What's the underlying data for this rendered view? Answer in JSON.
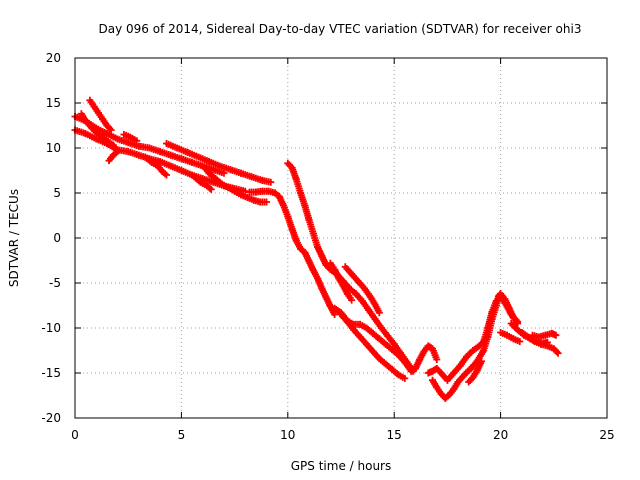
{
  "chart_data": {
    "type": "scatter",
    "title": "Day 096 of 2014, Sidereal Day-to-day VTEC variation (SDTVAR) for receiver ohi3",
    "xlabel": "GPS time / hours",
    "ylabel": "SDTVAR / TECUs",
    "xlim": [
      0,
      25
    ],
    "ylim": [
      -20,
      20
    ],
    "xticks": [
      0,
      5,
      10,
      15,
      20,
      25
    ],
    "yticks": [
      -20,
      -15,
      -10,
      -5,
      0,
      5,
      10,
      15,
      20
    ],
    "grid": true,
    "marker": "+",
    "series_color": "#ff0000",
    "tracks": [
      [
        [
          0.0,
          13.5
        ],
        [
          0.5,
          13.0
        ],
        [
          1.0,
          12.2
        ],
        [
          1.5,
          11.6
        ],
        [
          2.0,
          11.0
        ],
        [
          2.5,
          10.6
        ],
        [
          3.0,
          10.2
        ],
        [
          3.5,
          10.0
        ],
        [
          4.0,
          9.6
        ],
        [
          4.5,
          9.2
        ],
        [
          5.0,
          8.8
        ],
        [
          5.5,
          8.4
        ],
        [
          6.0,
          8.0
        ],
        [
          6.5,
          7.6
        ],
        [
          7.0,
          7.2
        ]
      ],
      [
        [
          0.0,
          12.0
        ],
        [
          0.5,
          11.6
        ],
        [
          1.0,
          11.0
        ],
        [
          1.5,
          10.5
        ],
        [
          2.0,
          9.8
        ],
        [
          2.5,
          9.6
        ],
        [
          3.0,
          9.2
        ],
        [
          3.5,
          8.8
        ],
        [
          4.0,
          8.5
        ],
        [
          4.5,
          8.0
        ],
        [
          5.0,
          7.5
        ],
        [
          5.5,
          7.0
        ],
        [
          6.0,
          6.6
        ],
        [
          6.5,
          6.2
        ],
        [
          7.0,
          5.8
        ],
        [
          7.5,
          5.5
        ],
        [
          8.0,
          5.2
        ]
      ],
      [
        [
          0.7,
          15.3
        ],
        [
          0.9,
          14.6
        ],
        [
          1.1,
          13.9
        ],
        [
          1.3,
          13.2
        ],
        [
          1.5,
          12.5
        ],
        [
          1.7,
          12.0
        ]
      ],
      [
        [
          0.3,
          13.8
        ],
        [
          0.5,
          13.0
        ],
        [
          0.8,
          12.2
        ],
        [
          1.1,
          11.5
        ],
        [
          1.4,
          11.0
        ],
        [
          1.8,
          10.3
        ],
        [
          2.0,
          9.6
        ],
        [
          1.8,
          9.2
        ],
        [
          1.6,
          8.6
        ]
      ],
      [
        [
          4.3,
          10.5
        ],
        [
          4.8,
          10.0
        ],
        [
          5.3,
          9.5
        ],
        [
          5.8,
          9.0
        ],
        [
          6.3,
          8.5
        ],
        [
          6.8,
          8.0
        ],
        [
          7.3,
          7.6
        ],
        [
          7.8,
          7.2
        ],
        [
          8.3,
          6.8
        ],
        [
          8.8,
          6.4
        ],
        [
          9.2,
          6.2
        ]
      ],
      [
        [
          2.3,
          11.5
        ],
        [
          2.6,
          11.2
        ],
        [
          2.9,
          10.8
        ]
      ],
      [
        [
          3.3,
          9.0
        ],
        [
          3.6,
          8.4
        ],
        [
          3.9,
          8.0
        ],
        [
          4.1,
          7.4
        ],
        [
          4.3,
          7.0
        ]
      ],
      [
        [
          6.1,
          7.8
        ],
        [
          6.3,
          7.2
        ],
        [
          6.6,
          6.6
        ],
        [
          6.9,
          6.0
        ],
        [
          7.2,
          5.6
        ],
        [
          7.5,
          5.2
        ],
        [
          7.8,
          4.8
        ]
      ],
      [
        [
          5.6,
          6.8
        ],
        [
          5.9,
          6.2
        ],
        [
          6.2,
          5.8
        ],
        [
          6.4,
          5.4
        ]
      ],
      [
        [
          7.8,
          4.8
        ],
        [
          8.1,
          4.5
        ],
        [
          8.4,
          4.2
        ],
        [
          8.7,
          4.0
        ],
        [
          9.0,
          4.0
        ]
      ],
      [
        [
          8.2,
          5.1
        ],
        [
          8.5,
          5.1
        ],
        [
          8.8,
          5.2
        ],
        [
          9.1,
          5.2
        ],
        [
          9.4,
          5.0
        ],
        [
          9.6,
          4.6
        ],
        [
          9.8,
          3.6
        ],
        [
          10.0,
          2.4
        ],
        [
          10.2,
          1.0
        ],
        [
          10.4,
          -0.3
        ],
        [
          10.6,
          -1.2
        ],
        [
          10.8,
          -1.6
        ],
        [
          11.0,
          -2.6
        ],
        [
          11.2,
          -3.6
        ],
        [
          11.4,
          -4.5
        ],
        [
          11.6,
          -5.6
        ],
        [
          11.8,
          -6.6
        ],
        [
          12.0,
          -7.6
        ],
        [
          12.2,
          -8.5
        ]
      ],
      [
        [
          10.0,
          8.3
        ],
        [
          10.2,
          7.8
        ],
        [
          10.4,
          6.5
        ],
        [
          10.6,
          5.0
        ],
        [
          10.8,
          3.6
        ],
        [
          11.0,
          2.0
        ],
        [
          11.2,
          0.5
        ],
        [
          11.4,
          -1.0
        ],
        [
          11.6,
          -2.0
        ],
        [
          11.8,
          -3.0
        ],
        [
          12.0,
          -3.5
        ],
        [
          12.3,
          -4.0
        ],
        [
          12.6,
          -4.8
        ],
        [
          12.9,
          -5.6
        ],
        [
          13.2,
          -6.2
        ],
        [
          13.5,
          -7.0
        ],
        [
          13.8,
          -8.0
        ],
        [
          14.1,
          -9.0
        ],
        [
          14.4,
          -10.0
        ],
        [
          14.7,
          -10.9
        ],
        [
          15.0,
          -11.8
        ],
        [
          15.3,
          -12.8
        ],
        [
          15.6,
          -13.8
        ],
        [
          15.9,
          -14.8
        ]
      ],
      [
        [
          12.5,
          -8.5
        ],
        [
          12.8,
          -9.3
        ],
        [
          13.1,
          -10.2
        ],
        [
          13.4,
          -11.0
        ],
        [
          13.7,
          -11.8
        ],
        [
          14.0,
          -12.6
        ],
        [
          14.3,
          -13.4
        ],
        [
          14.6,
          -14.0
        ],
        [
          14.9,
          -14.6
        ],
        [
          15.2,
          -15.2
        ],
        [
          15.5,
          -15.6
        ]
      ],
      [
        [
          12.2,
          -7.8
        ],
        [
          12.5,
          -8.3
        ],
        [
          12.8,
          -9.2
        ],
        [
          13.1,
          -9.6
        ],
        [
          13.4,
          -9.6
        ],
        [
          13.7,
          -10.0
        ],
        [
          14.0,
          -10.6
        ],
        [
          14.3,
          -11.2
        ],
        [
          14.6,
          -11.8
        ],
        [
          14.9,
          -12.4
        ],
        [
          15.2,
          -13.0
        ],
        [
          15.5,
          -13.8
        ],
        [
          15.8,
          -14.8
        ],
        [
          16.0,
          -14.5
        ],
        [
          16.2,
          -13.5
        ],
        [
          16.4,
          -12.6
        ],
        [
          16.6,
          -12.0
        ],
        [
          16.8,
          -12.3
        ],
        [
          17.0,
          -13.5
        ]
      ],
      [
        [
          12.7,
          -3.2
        ],
        [
          13.0,
          -4.0
        ],
        [
          13.3,
          -4.8
        ],
        [
          13.6,
          -5.6
        ],
        [
          13.9,
          -6.6
        ],
        [
          14.1,
          -7.4
        ],
        [
          14.3,
          -8.3
        ]
      ],
      [
        [
          12.0,
          -2.8
        ],
        [
          12.2,
          -3.5
        ],
        [
          12.4,
          -4.5
        ],
        [
          12.6,
          -5.3
        ],
        [
          12.8,
          -6.2
        ],
        [
          13.0,
          -6.9
        ]
      ],
      [
        [
          16.8,
          -15.8
        ],
        [
          17.0,
          -16.6
        ],
        [
          17.2,
          -17.3
        ],
        [
          17.4,
          -17.8
        ],
        [
          17.6,
          -17.4
        ],
        [
          17.8,
          -16.8
        ],
        [
          18.0,
          -16.0
        ],
        [
          18.3,
          -15.2
        ],
        [
          18.6,
          -14.5
        ],
        [
          18.9,
          -13.7
        ],
        [
          19.2,
          -12.5
        ],
        [
          19.4,
          -11.0
        ],
        [
          19.6,
          -9.0
        ],
        [
          19.8,
          -7.5
        ],
        [
          19.9,
          -6.5
        ],
        [
          20.0,
          -6.2
        ],
        [
          20.2,
          -6.8
        ],
        [
          20.4,
          -7.8
        ],
        [
          20.6,
          -8.8
        ],
        [
          20.8,
          -9.3
        ]
      ],
      [
        [
          16.6,
          -15.0
        ],
        [
          16.8,
          -14.8
        ],
        [
          17.0,
          -14.5
        ],
        [
          17.2,
          -15.0
        ],
        [
          17.5,
          -15.8
        ],
        [
          17.8,
          -15.0
        ],
        [
          18.1,
          -14.2
        ],
        [
          18.4,
          -13.2
        ],
        [
          18.7,
          -12.5
        ],
        [
          19.0,
          -12.0
        ],
        [
          19.2,
          -11.5
        ],
        [
          19.4,
          -10.0
        ],
        [
          19.6,
          -8.2
        ],
        [
          19.8,
          -7.0
        ],
        [
          20.0,
          -6.5
        ],
        [
          20.2,
          -7.2
        ],
        [
          20.5,
          -8.5
        ],
        [
          20.8,
          -9.5
        ]
      ],
      [
        [
          18.5,
          -16.0
        ],
        [
          18.7,
          -15.5
        ],
        [
          18.9,
          -14.7
        ],
        [
          19.1,
          -13.7
        ]
      ],
      [
        [
          20.5,
          -9.5
        ],
        [
          20.8,
          -10.2
        ],
        [
          21.1,
          -10.8
        ],
        [
          21.4,
          -11.2
        ],
        [
          21.7,
          -11.5
        ],
        [
          22.0,
          -11.7
        ],
        [
          22.2,
          -11.6
        ]
      ],
      [
        [
          21.0,
          -10.5
        ],
        [
          21.3,
          -11.0
        ],
        [
          21.6,
          -11.5
        ],
        [
          21.9,
          -11.8
        ],
        [
          22.2,
          -12.0
        ],
        [
          22.5,
          -12.3
        ],
        [
          22.7,
          -12.8
        ]
      ],
      [
        [
          21.5,
          -10.8
        ],
        [
          21.8,
          -11.0
        ],
        [
          22.1,
          -10.8
        ],
        [
          22.4,
          -10.6
        ],
        [
          22.6,
          -10.8
        ]
      ],
      [
        [
          20.0,
          -10.5
        ],
        [
          20.3,
          -10.8
        ],
        [
          20.6,
          -11.2
        ],
        [
          20.9,
          -11.5
        ]
      ]
    ]
  }
}
